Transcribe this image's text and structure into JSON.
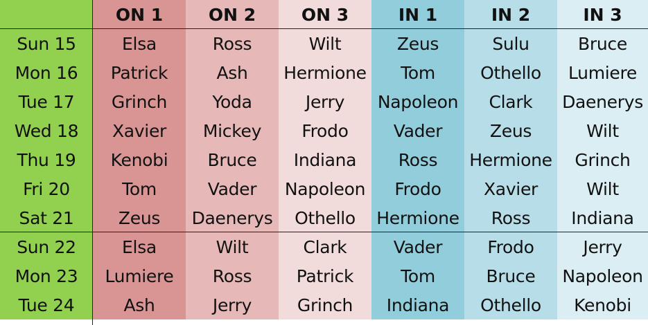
{
  "columns": [
    "ON 1",
    "ON 2",
    "ON 3",
    "IN 1",
    "IN 2",
    "IN 3"
  ],
  "rows": [
    {
      "date": "Sun 15",
      "cells": [
        "Elsa",
        "Ross",
        "Wilt",
        "Zeus",
        "Sulu",
        "Bruce"
      ]
    },
    {
      "date": "Mon 16",
      "cells": [
        "Patrick",
        "Ash",
        "Hermione",
        "Tom",
        "Othello",
        "Lumiere"
      ]
    },
    {
      "date": "Tue 17",
      "cells": [
        "Grinch",
        "Yoda",
        "Jerry",
        "Napoleon",
        "Clark",
        "Daenerys"
      ]
    },
    {
      "date": "Wed 18",
      "cells": [
        "Xavier",
        "Mickey",
        "Frodo",
        "Vader",
        "Zeus",
        "Wilt"
      ]
    },
    {
      "date": "Thu 19",
      "cells": [
        "Kenobi",
        "Bruce",
        "Indiana",
        "Ross",
        "Hermione",
        "Grinch"
      ]
    },
    {
      "date": "Fri 20",
      "cells": [
        "Tom",
        "Vader",
        "Napoleon",
        "Frodo",
        "Xavier",
        "Wilt"
      ]
    },
    {
      "date": "Sat 21",
      "cells": [
        "Zeus",
        "Daenerys",
        "Othello",
        "Hermione",
        "Ross",
        "Indiana"
      ]
    },
    {
      "date": "Sun 22",
      "cells": [
        "Elsa",
        "Wilt",
        "Clark",
        "Vader",
        "Frodo",
        "Jerry"
      ]
    },
    {
      "date": "Mon 23",
      "cells": [
        "Lumiere",
        "Ross",
        "Patrick",
        "Tom",
        "Bruce",
        "Napoleon"
      ]
    },
    {
      "date": "Tue 24",
      "cells": [
        "Ash",
        "Jerry",
        "Grinch",
        "Indiana",
        "Othello",
        "Kenobi"
      ]
    }
  ],
  "colors": {
    "date_col": "#92d050",
    "on1": "#d99594",
    "on2": "#e6b9b8",
    "on3": "#f2dcdb",
    "in1": "#92cddc",
    "in2": "#b7dee8",
    "in3": "#dbeef3"
  }
}
